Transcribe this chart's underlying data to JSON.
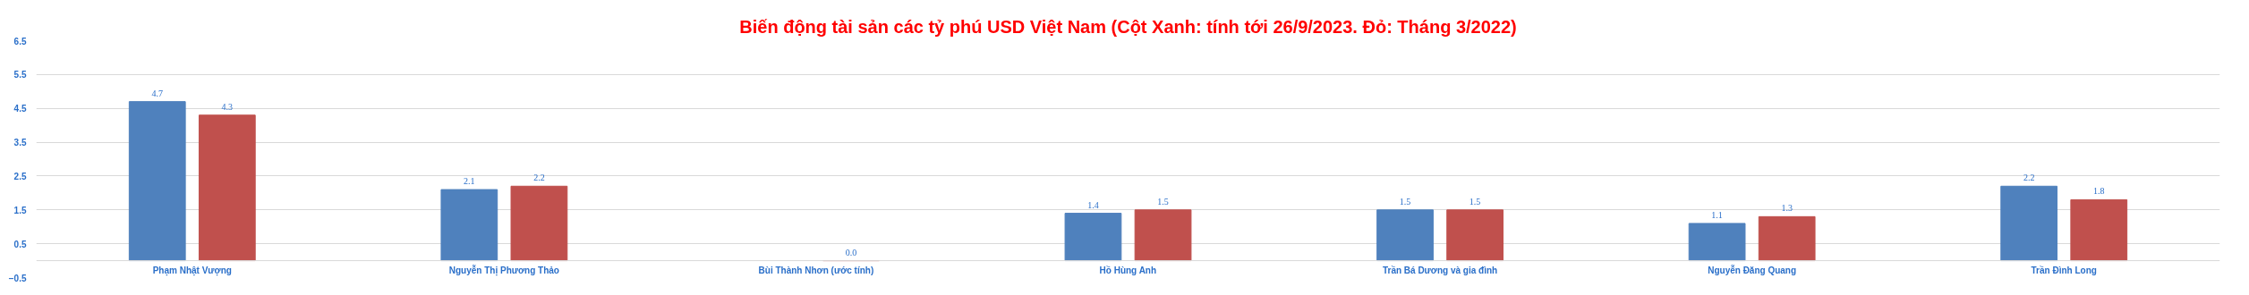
{
  "chart_data": {
    "type": "bar",
    "title": "Biến động tài sản các tỷ phú USD Việt Nam (Cột Xanh: tính tới 26/9/2023. Đỏ: Tháng 3/2022)",
    "categories": [
      "Phạm Nhật Vượng",
      "Nguyễn Thị Phương Thảo",
      "Bùi Thành Nhơn (ước tính)",
      "Hồ Hùng Anh",
      "Trần Bá Dương và gia đình",
      "Nguyễn Đăng Quang",
      "Trần Đình Long"
    ],
    "series": [
      {
        "color": "#4f81bd",
        "values": [
          4.7,
          2.1,
          null,
          1.4,
          1.5,
          1.1,
          2.2
        ],
        "value_labels": [
          "4.7",
          "2.1",
          null,
          "1.4",
          "1.5",
          "1.1",
          "2.2"
        ]
      },
      {
        "color": "#c0504d",
        "values": [
          4.3,
          2.2,
          0.0,
          1.5,
          1.5,
          1.3,
          1.8
        ],
        "value_labels": [
          "4.3",
          "2.2",
          "0.0",
          "1.5",
          "1.5",
          "1.3",
          "1.8"
        ]
      }
    ],
    "ylim": [
      -0.5,
      6.5
    ],
    "yticks": [
      -0.5,
      0.5,
      1.5,
      2.5,
      3.5,
      4.5,
      5.5,
      6.5
    ],
    "grid": "y"
  }
}
